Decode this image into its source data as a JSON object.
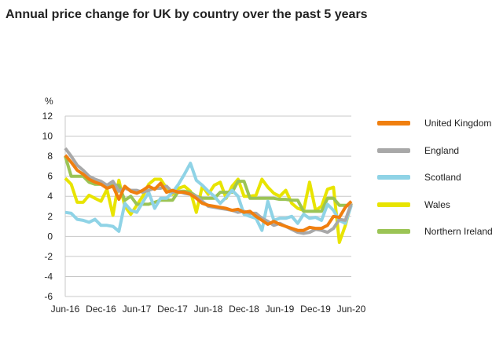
{
  "chart_data": {
    "type": "line",
    "title": "Annual price change for UK by country over the past 5 years",
    "ylabel": "%",
    "xlabel": "",
    "ylim": [
      -6,
      12
    ],
    "yticks": [
      "12",
      "10",
      "8",
      "6",
      "4",
      "2",
      "0",
      "-2",
      "-4",
      "-6"
    ],
    "xtick_labels": [
      "Jun-16",
      "Dec-16",
      "Jun-17",
      "Dec-17",
      "Jun-18",
      "Dec-18",
      "Jun-19",
      "Dec-19",
      "Jun-20"
    ],
    "x_range": "Jun-16 to Jun-20 (monthly)",
    "grid": true,
    "legend_position": "right",
    "series": [
      {
        "name": "Wales",
        "color": "#e8e400",
        "values": [
          5.8,
          5.2,
          3.4,
          3.4,
          4.1,
          3.8,
          3.5,
          4.7,
          2.1,
          5.6,
          3.0,
          2.2,
          3.1,
          4.0,
          5.2,
          5.7,
          5.7,
          4.8,
          4.2,
          4.8,
          5.0,
          4.5,
          2.4,
          5.0,
          4.2,
          5.1,
          5.4,
          3.8,
          5.0,
          5.7,
          4.0,
          4.0,
          4.1,
          5.7,
          4.9,
          4.3,
          4.0,
          4.6,
          3.3,
          2.8,
          2.6,
          5.4,
          2.6,
          3.0,
          4.7,
          4.9,
          -0.6,
          1.1,
          3.3
        ]
      },
      {
        "name": "Northern Ireland",
        "color": "#9bc455",
        "values": [
          8.0,
          6.0,
          6.0,
          6.0,
          5.4,
          5.2,
          5.2,
          5.1,
          5.1,
          5.1,
          3.6,
          4.0,
          3.2,
          3.2,
          3.2,
          3.4,
          3.6,
          3.6,
          3.6,
          4.5,
          4.5,
          4.4,
          4.0,
          3.8,
          3.8,
          3.8,
          4.4,
          4.4,
          4.4,
          5.5,
          5.5,
          3.8,
          3.8,
          3.8,
          3.8,
          3.8,
          3.7,
          3.7,
          3.6,
          3.6,
          2.5,
          2.5,
          2.5,
          2.5,
          3.8,
          3.8,
          3.1,
          3.1,
          3.1
        ]
      },
      {
        "name": "Scotland",
        "color": "#8fd3e6",
        "values": [
          2.4,
          2.3,
          1.7,
          1.6,
          1.4,
          1.7,
          1.1,
          1.1,
          1.0,
          0.5,
          3.3,
          2.6,
          2.4,
          3.4,
          4.4,
          2.8,
          3.8,
          3.8,
          4.4,
          5.2,
          6.2,
          7.3,
          5.6,
          5.1,
          4.5,
          4.0,
          3.3,
          3.9,
          4.6,
          4.0,
          2.2,
          2.0,
          1.8,
          0.6,
          3.5,
          1.6,
          1.8,
          1.8,
          2.0,
          1.3,
          2.2,
          1.8,
          1.9,
          1.6,
          3.2,
          2.6,
          1.6,
          1.3,
          3.1
        ]
      },
      {
        "name": "England",
        "color": "#a8a8a8",
        "values": [
          8.8,
          8.0,
          7.1,
          6.6,
          6.0,
          5.7,
          5.5,
          5.1,
          5.5,
          4.5,
          4.8,
          4.6,
          4.6,
          4.4,
          4.6,
          4.8,
          4.8,
          5.0,
          4.4,
          4.5,
          4.3,
          4.2,
          4.0,
          3.5,
          3.0,
          2.9,
          2.8,
          2.7,
          2.6,
          2.4,
          2.5,
          2.3,
          2.3,
          1.8,
          1.5,
          1.1,
          1.3,
          1.0,
          0.7,
          0.4,
          0.3,
          0.4,
          0.7,
          0.6,
          0.4,
          0.8,
          1.7,
          1.6,
          3.3
        ]
      },
      {
        "name": "United Kingdom",
        "color": "#f07f0f",
        "values": [
          8.1,
          7.4,
          6.6,
          6.2,
          5.7,
          5.4,
          5.2,
          4.8,
          5.0,
          3.7,
          5.0,
          4.5,
          4.3,
          4.6,
          5.0,
          4.7,
          5.3,
          4.4,
          4.6,
          4.4,
          4.4,
          4.2,
          3.8,
          3.3,
          3.1,
          3.0,
          2.9,
          2.8,
          2.6,
          2.7,
          2.4,
          2.5,
          2.0,
          1.6,
          1.2,
          1.5,
          1.2,
          1.0,
          0.8,
          0.6,
          0.6,
          0.9,
          0.8,
          0.8,
          1.1,
          2.0,
          1.9,
          2.9,
          3.5
        ]
      }
    ],
    "legend": [
      "United Kingdom",
      "England",
      "Scotland",
      "Wales",
      "Northern Ireland"
    ]
  }
}
